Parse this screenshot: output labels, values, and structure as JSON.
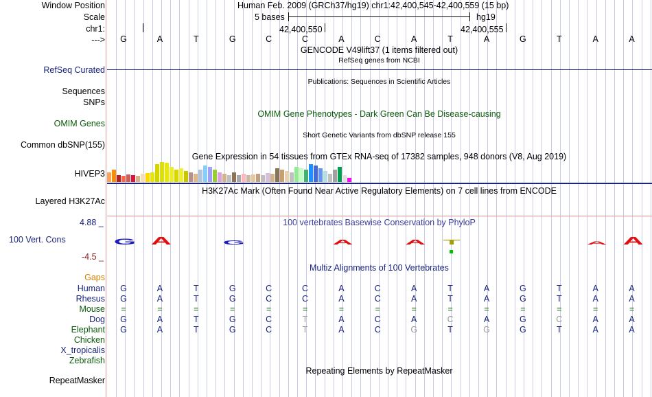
{
  "header": {
    "window_position_label": "Window Position",
    "window_position_value": "Human Feb. 2009 (GRCh37/hg19)   chr1:42,400,545-42,400,559 (15 bp)",
    "scale_label": "Scale",
    "scale_value": "5 bases",
    "scale_assembly": "hg19",
    "chrom_label": "chr1:",
    "coord_1": "42,400,550",
    "coord_2": "42,400,555",
    "strand_label": "--->"
  },
  "sequence": [
    "G",
    "A",
    "T",
    "G",
    "C",
    "C",
    "A",
    "C",
    "A",
    "T",
    "A",
    "G",
    "T",
    "A",
    "A"
  ],
  "tracks": {
    "gencode_title": "GENCODE V49lift37 (1 items filtered out)",
    "refseq_subtitle": "RefSeq genes from NCBI",
    "refseq_label": "RefSeq Curated",
    "publications_title": "Publications: Sequences in Scientific Articles",
    "sequences_label": "Sequences",
    "snps_label": "SNPs",
    "omim_title": "OMIM Gene Phenotypes - Dark Green Can Be Disease-causing",
    "omim_label": "OMIM Genes",
    "dbsnp_title": "Short Genetic Variants from dbSNP release 155",
    "dbsnp_label": "Common dbSNP(155)",
    "gtex_title": "Gene Expression in 54 tissues from GTEx RNA-seq of 17382 samples, 948 donors (V8, Aug 2019)",
    "gtex_gene_label": "HIVEP3",
    "h3k27_title": "H3K27Ac Mark (Often Found Near Active Regulatory Elements) on 7 cell lines from ENCODE",
    "h3k27_label": "Layered H3K27Ac",
    "cons_max": "4.88 _",
    "cons_title": "100 vertebrates Basewise Conservation by PhyloP",
    "cons_label": "100 Vert. Cons",
    "cons_min": "-4.5 _",
    "multiz_title": "Multiz Alignments of 100 Vertebrates",
    "repeat_title": "Repeating Elements by RepeatMasker",
    "repeat_label": "RepeatMasker"
  },
  "alignment": {
    "gaps_label": "Gaps",
    "species": [
      {
        "name": "Human",
        "color": "#1a237e",
        "seq": [
          "G",
          "A",
          "T",
          "G",
          "C",
          "C",
          "A",
          "C",
          "A",
          "T",
          "A",
          "G",
          "T",
          "A",
          "A"
        ]
      },
      {
        "name": "Rhesus",
        "color": "#1a237e",
        "seq": [
          "G",
          "A",
          "T",
          "G",
          "C",
          "C",
          "A",
          "C",
          "A",
          "T",
          "A",
          "G",
          "T",
          "A",
          "A"
        ]
      },
      {
        "name": "Mouse",
        "color": "#0b5a0b",
        "seq": [
          "=",
          "=",
          "=",
          "=",
          "=",
          "=",
          "=",
          "=",
          "=",
          "=",
          "=",
          "=",
          "=",
          "=",
          "="
        ]
      },
      {
        "name": "Dog",
        "color": "#1a237e",
        "seq": [
          "G",
          "A",
          "T",
          "G",
          "C",
          "T",
          "A",
          "C",
          "A",
          "C",
          "A",
          "G",
          "C",
          "A",
          "A"
        ]
      },
      {
        "name": "Elephant",
        "color": "#0b5a0b",
        "seq": [
          "G",
          "A",
          "T",
          "G",
          "C",
          "T",
          "A",
          "C",
          "G",
          "T",
          "G",
          "G",
          "T",
          "A",
          "A"
        ]
      },
      {
        "name": "Chicken",
        "color": "#0b5a0b",
        "seq": []
      },
      {
        "name": "X_tropicalis",
        "color": "#1a237e",
        "seq": []
      },
      {
        "name": "Zebrafish",
        "color": "#0b5a0b",
        "seq": []
      }
    ],
    "mismatch_flags": {
      "Dog": [
        false,
        false,
        false,
        false,
        false,
        true,
        false,
        false,
        false,
        true,
        false,
        false,
        true,
        false,
        false
      ],
      "Elephant": [
        false,
        false,
        false,
        false,
        false,
        true,
        false,
        false,
        true,
        false,
        true,
        false,
        false,
        false,
        false
      ]
    }
  },
  "colors": {
    "label_blue": "#1a237e",
    "label_green": "#0b5a0b",
    "gaps_orange": "#d98000",
    "cons_red": "#8b1a1a",
    "mismatch_gray": "#999999"
  }
}
